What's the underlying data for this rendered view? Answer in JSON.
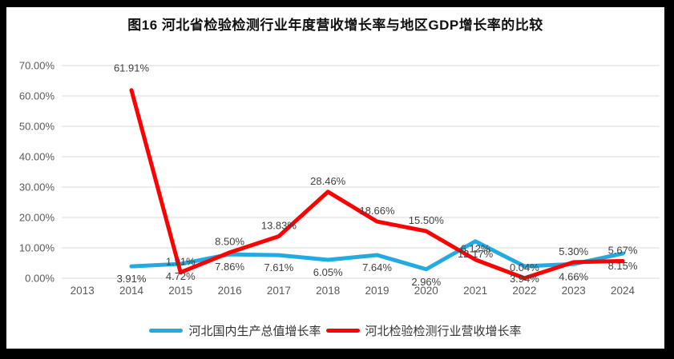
{
  "chart_data": {
    "type": "line",
    "title": "图16 河北省检验检测行业年度营收增长率与地区GDP增长率的比较",
    "categories": [
      "2013",
      "2014",
      "2015",
      "2016",
      "2017",
      "2018",
      "2019",
      "2020",
      "2021",
      "2022",
      "2023",
      "2024"
    ],
    "series": [
      {
        "name": "河北国内生产总值增长率",
        "color": "#22AAE1",
        "label_position": "below",
        "values": [
          null,
          3.91,
          4.72,
          7.86,
          7.61,
          6.05,
          7.64,
          2.96,
          12.17,
          3.94,
          4.66,
          8.15
        ]
      },
      {
        "name": "河北检验检测行业营收增长率",
        "color": "#FF0000",
        "label_position": "above",
        "values": [
          null,
          61.91,
          1.91,
          8.5,
          13.83,
          28.46,
          18.66,
          15.5,
          6.12,
          0.04,
          5.3,
          5.67
        ]
      }
    ],
    "y_axis": {
      "min": 0,
      "max": 70,
      "step": 10,
      "tick_labels": [
        "0.00%",
        "10.00%",
        "20.00%",
        "30.00%",
        "40.00%",
        "50.00%",
        "60.00%",
        "70.00%"
      ]
    },
    "grid": true,
    "legend_position": "bottom",
    "label_format": "percent-2dp"
  },
  "colors": {
    "gridline": "#D9D9D9",
    "axis_text": "#595959",
    "label_text": "#404040",
    "frame": "#000000",
    "background": "#FFFFFF"
  }
}
